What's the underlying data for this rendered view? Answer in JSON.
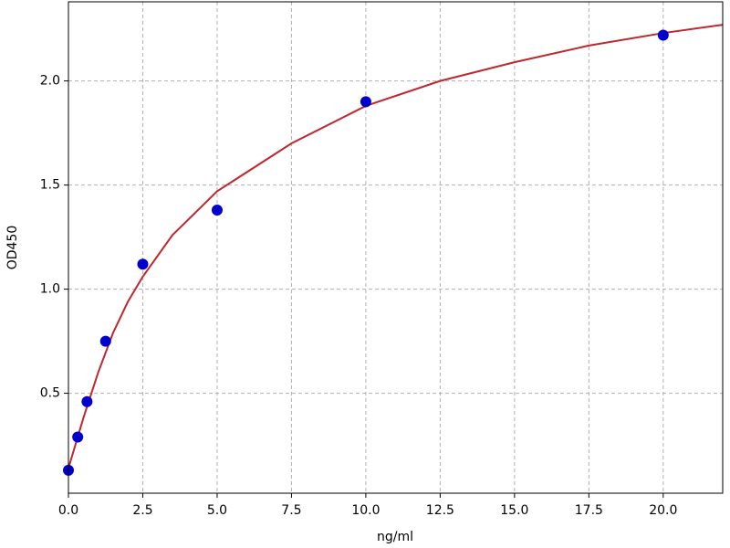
{
  "chart_data": {
    "type": "scatter",
    "xlabel": "ng/ml",
    "ylabel": "OD450",
    "xlim": [
      0,
      22
    ],
    "ylim": [
      0.02,
      2.38
    ],
    "xticks": [
      {
        "value": 0,
        "label": "0.0"
      },
      {
        "value": 2.5,
        "label": "2.5"
      },
      {
        "value": 5,
        "label": "5.0"
      },
      {
        "value": 7.5,
        "label": "7.5"
      },
      {
        "value": 10,
        "label": "10.0"
      },
      {
        "value": 12.5,
        "label": "12.5"
      },
      {
        "value": 15,
        "label": "15.0"
      },
      {
        "value": 17.5,
        "label": "17.5"
      },
      {
        "value": 20,
        "label": "20.0"
      }
    ],
    "yticks": [
      {
        "value": 0.5,
        "label": "0.5"
      },
      {
        "value": 1,
        "label": "1.0"
      },
      {
        "value": 1.5,
        "label": "1.5"
      },
      {
        "value": 2,
        "label": "2.0"
      }
    ],
    "grid": true,
    "points": {
      "color": "#0000cc",
      "x": [
        0,
        0.3125,
        0.625,
        1.25,
        2.5,
        5,
        10,
        20
      ],
      "values": [
        0.13,
        0.29,
        0.46,
        0.75,
        1.12,
        1.38,
        1.9,
        2.22
      ]
    },
    "curve": {
      "color": "#c0272d",
      "x": [
        0,
        0.5,
        1,
        1.5,
        2,
        2.5,
        3.5,
        5,
        7.5,
        10,
        12.5,
        15,
        17.5,
        20,
        22
      ],
      "values": [
        0.14,
        0.38,
        0.6,
        0.79,
        0.94,
        1.06,
        1.26,
        1.47,
        1.7,
        1.88,
        2.0,
        2.09,
        2.17,
        2.23,
        2.27
      ]
    }
  }
}
